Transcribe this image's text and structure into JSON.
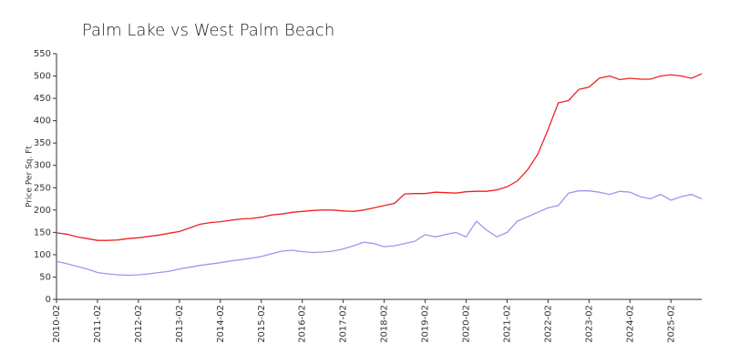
{
  "chart_data": {
    "type": "line",
    "title": "Palm Lake vs West Palm Beach",
    "y_label": "Price Per Sq. Ft",
    "x": [
      "2010-02",
      "2010-05",
      "2010-08",
      "2010-11",
      "2011-02",
      "2011-05",
      "2011-08",
      "2011-11",
      "2012-02",
      "2012-05",
      "2012-08",
      "2012-11",
      "2013-02",
      "2013-05",
      "2013-08",
      "2013-11",
      "2014-02",
      "2014-05",
      "2014-08",
      "2014-11",
      "2015-02",
      "2015-05",
      "2015-08",
      "2015-11",
      "2016-02",
      "2016-05",
      "2016-08",
      "2016-11",
      "2017-02",
      "2017-05",
      "2017-08",
      "2017-11",
      "2018-02",
      "2018-05",
      "2018-08",
      "2018-11",
      "2019-02",
      "2019-05",
      "2019-08",
      "2019-11",
      "2020-02",
      "2020-05",
      "2020-08",
      "2020-11",
      "2021-02",
      "2021-05",
      "2021-08",
      "2021-11",
      "2022-02",
      "2022-05",
      "2022-08",
      "2022-11",
      "2023-02",
      "2023-05",
      "2023-08",
      "2023-11",
      "2024-02",
      "2024-05",
      "2024-08",
      "2024-11",
      "2025-02",
      "2025-05",
      "2025-08",
      "2025-11"
    ],
    "xlim": [
      "2010-02",
      "2025-11"
    ],
    "xticks": [
      "2010-02",
      "2011-02",
      "2012-02",
      "2013-02",
      "2014-02",
      "2015-02",
      "2016-02",
      "2017-02",
      "2018-02",
      "2019-02",
      "2020-02",
      "2021-02",
      "2022-02",
      "2023-02",
      "2024-02",
      "2025-02"
    ],
    "ylim": [
      0,
      550
    ],
    "yticks": [
      0,
      50,
      100,
      150,
      200,
      250,
      300,
      350,
      400,
      450,
      500,
      550
    ],
    "grid": false,
    "series": [
      {
        "color": "#ee2222",
        "values": [
          149,
          146,
          140,
          136,
          132,
          132,
          133,
          136,
          138,
          141,
          144,
          148,
          152,
          160,
          168,
          172,
          174,
          177,
          180,
          181,
          184,
          189,
          191,
          195,
          197,
          199,
          200,
          200,
          198,
          197,
          200,
          205,
          210,
          215,
          236,
          237,
          237,
          240,
          239,
          238,
          241,
          242,
          242,
          245,
          252,
          265,
          290,
          325,
          380,
          440,
          445,
          470,
          475,
          495,
          500,
          492,
          495,
          493,
          493,
          500,
          503,
          500,
          495,
          505
        ]
      },
      {
        "color": "#9999ee",
        "values": [
          85,
          80,
          74,
          68,
          60,
          57,
          55,
          54,
          55,
          57,
          60,
          63,
          68,
          72,
          76,
          79,
          82,
          86,
          89,
          92,
          96,
          102,
          108,
          110,
          107,
          105,
          106,
          108,
          113,
          120,
          128,
          125,
          118,
          120,
          125,
          130,
          145,
          140,
          145,
          150,
          140,
          175,
          155,
          140,
          150,
          175,
          185,
          195,
          205,
          210,
          238,
          243,
          243,
          240,
          235,
          242,
          240,
          230,
          225,
          235,
          222,
          230,
          235,
          225
        ]
      }
    ]
  }
}
